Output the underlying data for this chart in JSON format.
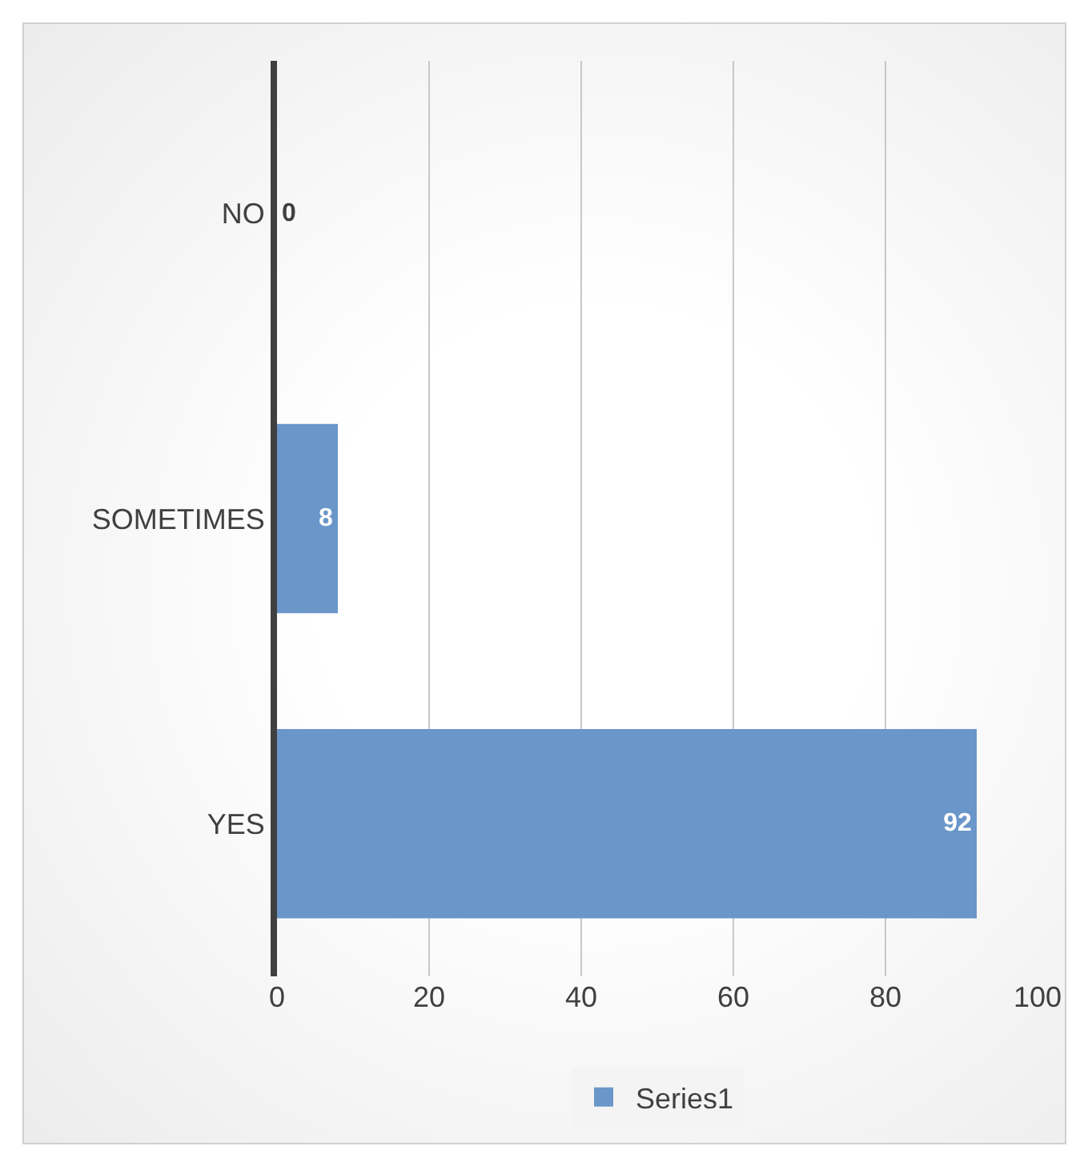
{
  "chart_data": {
    "type": "bar",
    "orientation": "horizontal",
    "categories": [
      "NO",
      "SOMETIMES",
      "YES"
    ],
    "series": [
      {
        "name": "Series1",
        "color": "#6a96c9",
        "values": [
          0,
          8,
          92
        ]
      }
    ],
    "xlim": [
      0,
      100
    ],
    "xticks": [
      0,
      20,
      40,
      60,
      80,
      100
    ],
    "grid": "x",
    "legend": "bottom",
    "data_labels": true
  }
}
